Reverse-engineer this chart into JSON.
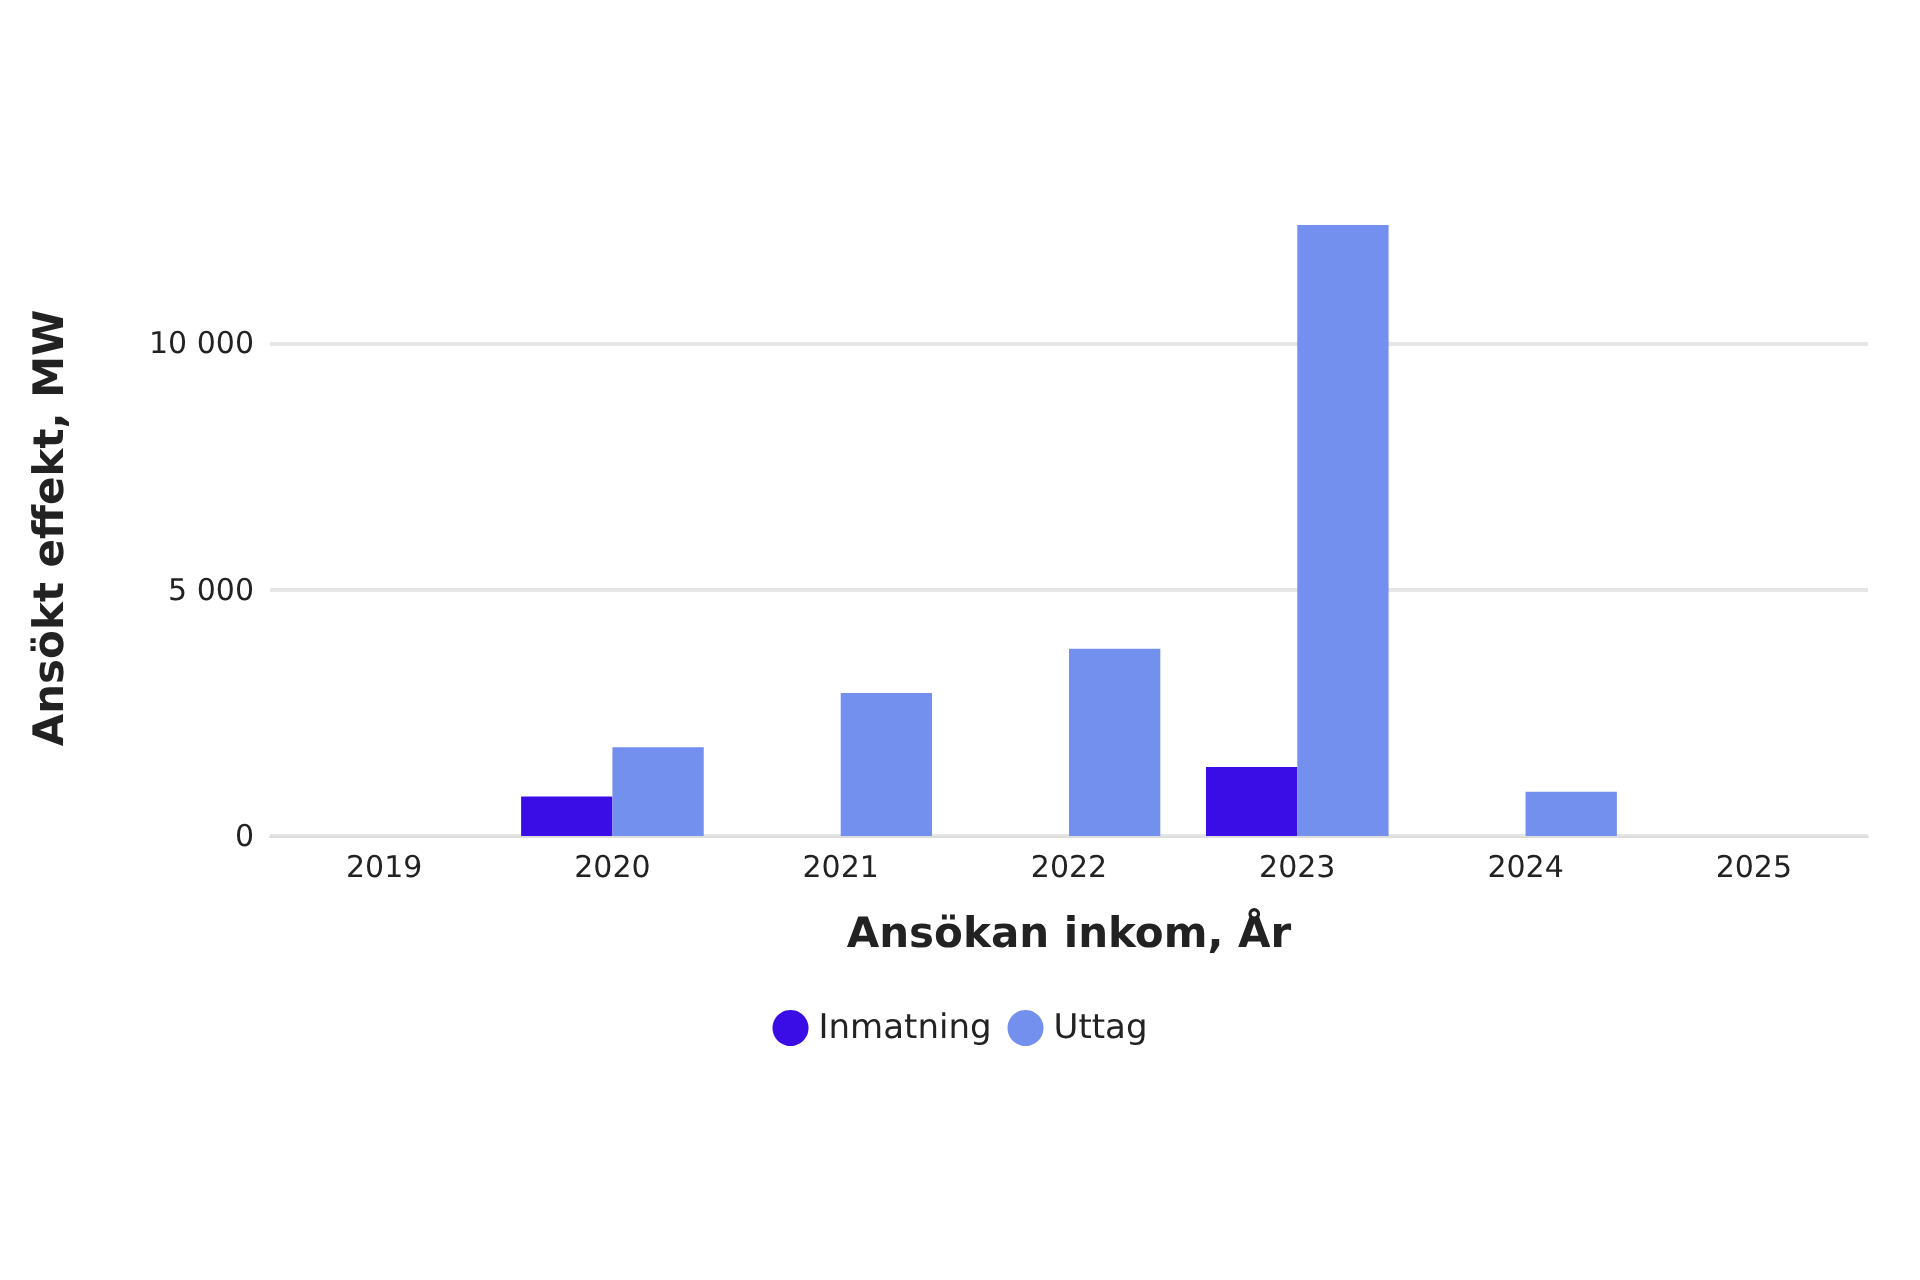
{
  "chart_data": {
    "type": "bar",
    "xlabel": "Ansökan inkom, År",
    "ylabel": "Ansökt effekt, MW",
    "categories": [
      "2019",
      "2020",
      "2021",
      "2022",
      "2023",
      "2024",
      "2025"
    ],
    "series": [
      {
        "name": "Inmatning",
        "color": "#3a0ce6",
        "values": [
          null,
          800,
          null,
          null,
          1400,
          null,
          null
        ]
      },
      {
        "name": "Uttag",
        "color": "#7490ef",
        "values": [
          null,
          1800,
          2900,
          3800,
          12400,
          900,
          null
        ]
      }
    ],
    "ylim": [
      0,
      12500
    ],
    "yticks": [
      0,
      {
        "value": 5000,
        "label": "5 000"
      },
      {
        "value": 10000,
        "label": "10 000"
      }
    ],
    "grid": "y",
    "legend": "bottom"
  }
}
